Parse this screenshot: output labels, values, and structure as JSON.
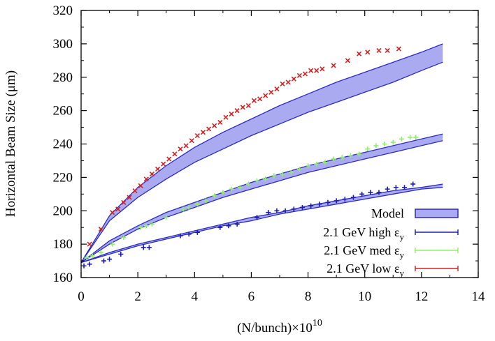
{
  "chart_data": {
    "type": "scatter",
    "xlabel_base": "(N/bunch)×10",
    "xlabel_exp": "10",
    "ylabel": "Horizontal Beam Size (μm)",
    "xlim": [
      0,
      14
    ],
    "ylim": [
      160,
      320
    ],
    "xticks": [
      "0",
      "2",
      "4",
      "6",
      "8",
      "10",
      "12",
      "14"
    ],
    "yticks": [
      "160",
      "180",
      "200",
      "220",
      "240",
      "260",
      "280",
      "300",
      "320"
    ],
    "grid": false,
    "legend_position": "bottom-right",
    "legend": [
      {
        "label": "Model",
        "kind": "band",
        "color": "#aaaaf0",
        "edge": "#2b2bc0"
      },
      {
        "label": "2.1 GeV high ",
        "eps": "ε",
        "sub": "y",
        "kind": "errorbar",
        "color": "#1b1bb4"
      },
      {
        "label": "2.1 GeV med ",
        "eps": "ε",
        "sub": "y",
        "kind": "errorbar",
        "color": "#8fef6a"
      },
      {
        "label": "2.1 GeV low ",
        "eps": "ε",
        "sub": "y",
        "kind": "errorbar",
        "color": "#d42020"
      }
    ],
    "bands": [
      {
        "name": "low",
        "x": [
          0,
          1,
          2,
          3,
          4,
          5,
          6,
          7,
          8,
          9,
          10,
          11,
          12,
          12.75
        ],
        "upper": [
          169,
          197,
          214,
          227,
          238,
          247,
          255,
          263,
          270,
          277,
          283,
          289,
          295,
          300
        ],
        "lower": [
          169,
          194,
          208,
          219,
          229,
          237,
          245,
          252,
          259,
          265,
          271,
          277,
          284,
          289
        ]
      },
      {
        "name": "med",
        "x": [
          0,
          1,
          2,
          3,
          4,
          5,
          6,
          7,
          8,
          9,
          10,
          11,
          12,
          12.75
        ],
        "upper": [
          169,
          182,
          191,
          199,
          205,
          211,
          217,
          222,
          227,
          231,
          235,
          239,
          243,
          246
        ],
        "lower": [
          169,
          180,
          189,
          196,
          202,
          208,
          213,
          218,
          223,
          227,
          231,
          235,
          239,
          242
        ]
      },
      {
        "name": "high",
        "x": [
          0,
          1,
          2,
          3,
          4,
          5,
          6,
          7,
          8,
          9,
          10,
          11,
          12,
          12.75
        ],
        "upper": [
          169,
          175,
          180,
          184,
          188,
          192,
          196,
          199,
          203,
          206,
          209,
          212,
          214,
          216
        ],
        "lower": [
          169,
          174,
          179,
          183,
          187,
          191,
          194,
          198,
          201,
          204,
          207,
          210,
          213,
          214
        ]
      }
    ],
    "series": [
      {
        "name": "2.1 GeV low εy",
        "color": "#d42020",
        "marker": "x",
        "points": [
          [
            0.3,
            180
          ],
          [
            0.7,
            189
          ],
          [
            1.1,
            199
          ],
          [
            1.3,
            201
          ],
          [
            1.5,
            205
          ],
          [
            1.7,
            208
          ],
          [
            1.9,
            212
          ],
          [
            2.1,
            215
          ],
          [
            2.3,
            219
          ],
          [
            2.5,
            222
          ],
          [
            2.7,
            225
          ],
          [
            2.9,
            228
          ],
          [
            3.1,
            231
          ],
          [
            3.3,
            234
          ],
          [
            3.5,
            237
          ],
          [
            3.7,
            239
          ],
          [
            3.9,
            242
          ],
          [
            4.1,
            245
          ],
          [
            4.3,
            247
          ],
          [
            4.5,
            249
          ],
          [
            4.7,
            251
          ],
          [
            4.9,
            253
          ],
          [
            5.1,
            256
          ],
          [
            5.3,
            258
          ],
          [
            5.5,
            260
          ],
          [
            5.7,
            262
          ],
          [
            5.9,
            263
          ],
          [
            6.1,
            266
          ],
          [
            6.3,
            267
          ],
          [
            6.5,
            269
          ],
          [
            6.7,
            271
          ],
          [
            6.9,
            273
          ],
          [
            7.1,
            276
          ],
          [
            7.3,
            277
          ],
          [
            7.5,
            279
          ],
          [
            7.7,
            281
          ],
          [
            7.9,
            282
          ],
          [
            8.1,
            284
          ],
          [
            8.3,
            284
          ],
          [
            8.5,
            285
          ],
          [
            8.9,
            287
          ],
          [
            9.4,
            290
          ],
          [
            9.8,
            294
          ],
          [
            10.1,
            295
          ],
          [
            10.5,
            296
          ],
          [
            10.8,
            296
          ],
          [
            11.2,
            297
          ]
        ]
      },
      {
        "name": "2.1 GeV med εy",
        "color": "#8fef6a",
        "marker": "+",
        "points": [
          [
            0.2,
            172
          ],
          [
            0.4,
            173
          ],
          [
            0.7,
            175
          ],
          [
            1.1,
            180
          ],
          [
            1.5,
            184
          ],
          [
            2.1,
            190
          ],
          [
            2.3,
            191
          ],
          [
            2.5,
            192
          ],
          [
            3.0,
            196
          ],
          [
            3.6,
            201
          ],
          [
            3.8,
            202
          ],
          [
            4.1,
            204
          ],
          [
            4.4,
            206
          ],
          [
            4.7,
            209
          ],
          [
            5.0,
            211
          ],
          [
            5.3,
            213
          ],
          [
            5.6,
            214
          ],
          [
            5.9,
            216
          ],
          [
            6.2,
            218
          ],
          [
            6.5,
            219
          ],
          [
            6.8,
            221
          ],
          [
            7.1,
            222
          ],
          [
            7.4,
            223
          ],
          [
            7.7,
            225
          ],
          [
            8.0,
            227
          ],
          [
            8.3,
            228
          ],
          [
            8.6,
            229
          ],
          [
            8.9,
            231
          ],
          [
            9.2,
            232
          ],
          [
            9.5,
            233
          ],
          [
            9.8,
            234
          ],
          [
            10.1,
            237
          ],
          [
            10.4,
            239
          ],
          [
            10.7,
            240
          ],
          [
            11.0,
            241
          ],
          [
            11.3,
            243
          ],
          [
            11.6,
            244
          ],
          [
            11.8,
            244
          ]
        ]
      },
      {
        "name": "2.1 GeV high εy",
        "color": "#1b1bb4",
        "marker": "+",
        "points": [
          [
            0.1,
            167
          ],
          [
            0.3,
            168
          ],
          [
            0.8,
            170
          ],
          [
            1.0,
            171
          ],
          [
            1.4,
            174
          ],
          [
            2.2,
            178
          ],
          [
            2.4,
            178
          ],
          [
            3.5,
            185
          ],
          [
            3.8,
            186
          ],
          [
            4.1,
            187
          ],
          [
            4.9,
            190
          ],
          [
            5.2,
            191
          ],
          [
            5.5,
            192
          ],
          [
            6.2,
            196
          ],
          [
            6.6,
            199
          ],
          [
            6.9,
            200
          ],
          [
            7.2,
            200
          ],
          [
            7.5,
            201
          ],
          [
            7.8,
            202
          ],
          [
            8.1,
            203
          ],
          [
            8.4,
            204
          ],
          [
            8.7,
            205
          ],
          [
            9.0,
            206
          ],
          [
            9.3,
            207
          ],
          [
            9.6,
            208
          ],
          [
            9.9,
            210
          ],
          [
            10.2,
            211
          ],
          [
            10.5,
            211
          ],
          [
            10.8,
            213
          ],
          [
            11.1,
            214
          ],
          [
            11.4,
            214
          ],
          [
            11.7,
            216
          ]
        ]
      }
    ]
  }
}
